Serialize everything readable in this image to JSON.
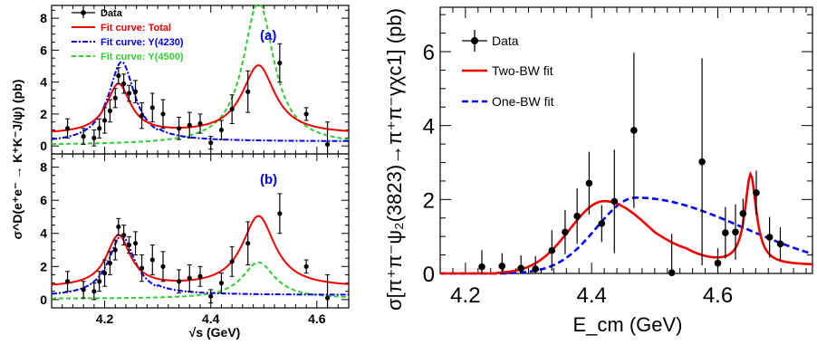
{
  "chart_data": [
    {
      "panel": "a",
      "type": "scatter",
      "tag": "(a)",
      "xlim": [
        4.1,
        4.66
      ],
      "ylim": [
        -0.5,
        8.8
      ],
      "yticks": [
        "0",
        "2",
        "4",
        "6",
        "8"
      ],
      "ylabel": "σ^D(e⁺e⁻ → K⁺K⁻J/ψ) (pb)",
      "legend": {
        "position": "top-left",
        "entries": [
          {
            "label": "Data",
            "color": "#000000"
          },
          {
            "label": "Fit curve: Total",
            "color": "#ee0000"
          },
          {
            "label": "Fit curve: Y(4230)",
            "color": "#0000ee"
          },
          {
            "label": "Fit curve: Y(4500)",
            "color": "#33cc33"
          }
        ]
      },
      "series": [
        {
          "name": "Data",
          "x": [
            4.13,
            4.16,
            4.18,
            4.19,
            4.2,
            4.21,
            4.22,
            4.226,
            4.236,
            4.246,
            4.258,
            4.27,
            4.29,
            4.31,
            4.34,
            4.36,
            4.38,
            4.4,
            4.42,
            4.44,
            4.47,
            4.53,
            4.58,
            4.62
          ],
          "y": [
            1.1,
            0.6,
            0.5,
            1.1,
            1.6,
            2.2,
            3.0,
            4.4,
            3.9,
            3.3,
            3.4,
            1.9,
            2.4,
            2.0,
            1.1,
            1.3,
            1.4,
            0.2,
            1.0,
            2.3,
            3.4,
            5.2,
            2.0,
            0.1
          ],
          "err": [
            0.6,
            0.5,
            0.5,
            0.6,
            0.8,
            0.7,
            0.6,
            0.5,
            0.6,
            0.5,
            0.7,
            0.8,
            0.9,
            0.9,
            0.7,
            0.8,
            0.6,
            0.4,
            0.6,
            0.9,
            1.3,
            1.2,
            0.4,
            1.4
          ]
        },
        {
          "name": "Fit curve: Total",
          "color": "#ee0000",
          "dash": "",
          "peaks": [
            [
              4.226,
              3.1,
              0.055
            ],
            [
              4.49,
              4.3,
              0.075
            ]
          ]
        },
        {
          "name": "Fit curve: Y(4230)",
          "color": "#0000ee",
          "dash": "6,2,2,2",
          "peaks": [
            [
              4.232,
              5.1,
              0.06
            ]
          ]
        },
        {
          "name": "Fit curve: Y(4500)",
          "color": "#33cc33",
          "dash": "5,3",
          "peaks": [
            [
              4.49,
              9.0,
              0.07
            ]
          ]
        }
      ]
    },
    {
      "panel": "b",
      "type": "scatter",
      "tag": "(b)",
      "xlim": [
        4.1,
        4.66
      ],
      "ylim": [
        -0.5,
        8.8
      ],
      "xticks": [
        "4.2",
        "4.4",
        "4.6"
      ],
      "yticks": [
        "0",
        "2",
        "4",
        "6",
        "8"
      ],
      "xlabel": "√s (GeV)",
      "series": [
        {
          "name": "Data",
          "x": [
            4.13,
            4.16,
            4.18,
            4.19,
            4.2,
            4.21,
            4.22,
            4.226,
            4.236,
            4.246,
            4.258,
            4.27,
            4.29,
            4.31,
            4.34,
            4.36,
            4.38,
            4.4,
            4.42,
            4.44,
            4.47,
            4.53,
            4.58,
            4.62
          ],
          "y": [
            1.1,
            0.6,
            0.5,
            1.1,
            1.6,
            2.2,
            3.0,
            4.4,
            3.9,
            3.3,
            3.4,
            1.9,
            2.4,
            2.0,
            1.1,
            1.3,
            1.4,
            0.2,
            1.0,
            2.3,
            3.4,
            5.2,
            2.0,
            0.1
          ],
          "err": [
            0.6,
            0.5,
            0.5,
            0.6,
            0.8,
            0.7,
            0.6,
            0.5,
            0.6,
            0.5,
            0.7,
            0.8,
            0.9,
            0.9,
            0.7,
            0.8,
            0.6,
            0.4,
            0.6,
            0.9,
            1.3,
            1.2,
            0.4,
            1.4
          ]
        },
        {
          "name": "Fit curve: Total",
          "color": "#ee0000",
          "dash": "",
          "peaks": [
            [
              4.226,
              3.1,
              0.055
            ],
            [
              4.49,
              4.3,
              0.075
            ]
          ]
        },
        {
          "name": "Fit curve: Y(4230)",
          "color": "#0000ee",
          "dash": "6,2,2,2",
          "peaks": [
            [
              4.232,
              3.7,
              0.06
            ]
          ]
        },
        {
          "name": "Fit curve: Y(4500)",
          "color": "#33cc33",
          "dash": "5,3",
          "peaks": [
            [
              4.49,
              2.2,
              0.075
            ]
          ]
        }
      ]
    },
    {
      "panel": "right",
      "type": "scatter",
      "xlim": [
        4.16,
        4.75
      ],
      "ylim": [
        0,
        7.2
      ],
      "xticks": [
        "4.2",
        "4.4",
        "4.6"
      ],
      "yticks": [
        "0",
        "2",
        "4",
        "6"
      ],
      "xlabel": "E_cm (GeV)",
      "ylabel": "σ[π⁺π⁻ψ₂(3823)→π⁺π⁻γχc1] (pb)",
      "legend": {
        "position": "top-left",
        "entries": [
          {
            "label": "Data",
            "color": "#000000"
          },
          {
            "label": "Two-BW fit",
            "color": "#ee0000"
          },
          {
            "label": "One-BW fit",
            "color": "#0000ee"
          }
        ]
      },
      "series": [
        {
          "name": "Data",
          "x": [
            4.226,
            4.258,
            4.288,
            4.311,
            4.337,
            4.358,
            4.377,
            4.396,
            4.416,
            4.436,
            4.467,
            4.527,
            4.575,
            4.6,
            4.612,
            4.628,
            4.64,
            4.661,
            4.682,
            4.699
          ],
          "y": [
            0.18,
            0.2,
            0.14,
            0.12,
            0.62,
            1.12,
            1.55,
            2.44,
            1.35,
            1.95,
            3.87,
            0.02,
            3.02,
            0.28,
            1.1,
            1.12,
            1.62,
            2.18,
            0.98,
            0.8
          ],
          "err": [
            0.45,
            0.35,
            0.35,
            0.35,
            0.55,
            0.6,
            0.75,
            0.85,
            0.5,
            1.4,
            2.1,
            1.05,
            2.8,
            0.4,
            0.7,
            0.75,
            0.4,
            0.6,
            0.55,
            0.45
          ]
        },
        {
          "name": "Two-BW fit",
          "color": "#ee0000",
          "dash": ""
        },
        {
          "name": "One-BW fit",
          "color": "#0000ee",
          "dash": "7,4"
        }
      ]
    }
  ]
}
